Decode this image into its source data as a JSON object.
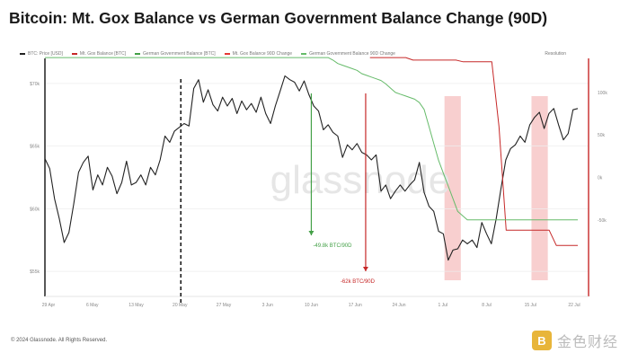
{
  "title": "Bitcoin: Mt. Gox Balance vs German Government Balance Change (90D)",
  "legend": [
    {
      "label": "BTC: Price [USD]",
      "color": "#222222"
    },
    {
      "label": "Mt. Gox Balance [BTC]",
      "color": "#c62828"
    },
    {
      "label": "German Government Balance [BTC]",
      "color": "#43a047"
    },
    {
      "label": "Mt. Gox Balance 90D Change",
      "color": "#e53935"
    },
    {
      "label": "German Government Balance 90D Change",
      "color": "#66bb6a"
    }
  ],
  "resolution_label": "Resolution",
  "watermark": "glassnode",
  "footer": "© 2024 Glassnode. All Rights Reserved.",
  "brand": {
    "logo_text": "B",
    "name": "金色财经"
  },
  "chart_data": {
    "type": "line",
    "title": "Bitcoin: Mt. Gox Balance vs German Government Balance Change (90D)",
    "x_ticks": [
      "29 Apr",
      "6 May",
      "13 May",
      "20 May",
      "27 May",
      "3 Jun",
      "10 Jun",
      "17 Jun",
      "24 Jun",
      "1 Jul",
      "8 Jul",
      "15 Jul",
      "22 Jul"
    ],
    "y_left_ticks": [
      "$55k",
      "$60k",
      "$65k",
      "$70k"
    ],
    "y_left_range": [
      53000,
      72000
    ],
    "y_right_ticks": [
      "-50k",
      "0k",
      "50k",
      "100k"
    ],
    "y_right_range": [
      -140000,
      140000
    ],
    "series": [
      {
        "name": "BTC: Price [USD]",
        "color": "#222222",
        "values": [
          64000,
          63200,
          60800,
          59200,
          57300,
          58100,
          60400,
          62900,
          63700,
          64200,
          61500,
          62700,
          61900,
          63300,
          62600,
          61200,
          62100,
          63800,
          61900,
          62100,
          62700,
          61900,
          63300,
          62700,
          63900,
          65800,
          65300,
          66200,
          66500,
          66800,
          66600,
          69600,
          70300,
          68500,
          69500,
          68300,
          67800,
          68900,
          68200,
          68800,
          67600,
          68600,
          67900,
          68400,
          67700,
          68900,
          67600,
          66800,
          68200,
          69400,
          70600,
          70300,
          70100,
          69400,
          70200,
          69100,
          68200,
          67800,
          66300,
          66700,
          66100,
          65800,
          64100,
          65100,
          64700,
          65200,
          64500,
          64300,
          63900,
          64300,
          61400,
          61900,
          60800,
          61400,
          61900,
          61400,
          61900,
          62300,
          63700,
          61300,
          60200,
          59800,
          58200,
          58000,
          55900,
          56700,
          56800,
          57500,
          57200,
          57500,
          56900,
          58900,
          58000,
          57200,
          59200,
          61600,
          63900,
          64800,
          65100,
          65800,
          65300,
          66700,
          67300,
          67700,
          66400,
          67600,
          68000,
          66700,
          65500,
          66000,
          67900,
          68000
        ]
      },
      {
        "name": "Mt. Gox Balance 90D Change",
        "color": "#c62828",
        "x_start": 0.61,
        "values": [
          141000,
          141000,
          141000,
          141000,
          141000,
          141000,
          138000,
          138000,
          138000,
          138000,
          138000,
          138000,
          138000,
          136000,
          136000,
          136000,
          136000,
          136000,
          60000,
          -62000,
          -62000,
          -62000,
          -62000,
          -62000,
          -62000,
          -62000,
          -80000,
          -80000,
          -80000,
          -80000
        ]
      },
      {
        "name": "German Government Balance 90D Change",
        "color": "#66bb6a",
        "values": [
          141000,
          141000,
          141000,
          141000,
          141000,
          141000,
          141000,
          141000,
          141000,
          141000,
          141000,
          141000,
          141000,
          141000,
          141000,
          141000,
          141000,
          141000,
          141000,
          141000,
          141000,
          141000,
          141000,
          141000,
          141000,
          141000,
          141000,
          141000,
          141000,
          141000,
          141000,
          141000,
          141000,
          141000,
          141000,
          141000,
          141000,
          141000,
          141000,
          141000,
          141000,
          141000,
          141000,
          141000,
          141000,
          141000,
          141000,
          141000,
          141000,
          141000,
          141000,
          141000,
          141000,
          141000,
          141000,
          141000,
          141000,
          141000,
          141000,
          141000,
          138000,
          134000,
          132000,
          130000,
          128000,
          126000,
          122000,
          120000,
          118000,
          116000,
          114000,
          110000,
          105000,
          100000,
          98000,
          96000,
          94000,
          92000,
          88000,
          80000,
          60000,
          40000,
          20000,
          5000,
          -10000,
          -25000,
          -40000,
          -45000,
          -50000,
          -50000,
          -50000,
          -50000,
          -50000,
          -50000,
          -50000,
          -50000,
          -50000,
          -50000,
          -50000,
          -50000,
          -50000,
          -50000,
          -50000,
          -50000,
          -50000,
          -50000,
          -50000,
          -50000,
          -50000,
          -50000,
          -50000,
          -50000
        ]
      }
    ],
    "annotations": [
      {
        "label": "-49.8k BTC/90D",
        "color": "#43a047",
        "x_position": 0.49
      },
      {
        "label": "-62k BTC/90D",
        "color": "#c62828",
        "x_position": 0.59
      }
    ],
    "highlight_bands": [
      {
        "x_start": 0.735,
        "x_end": 0.765
      },
      {
        "x_start": 0.895,
        "x_end": 0.925
      }
    ],
    "vertical_marker_x": 0.25,
    "grid": true,
    "legend_position": "top-left"
  }
}
